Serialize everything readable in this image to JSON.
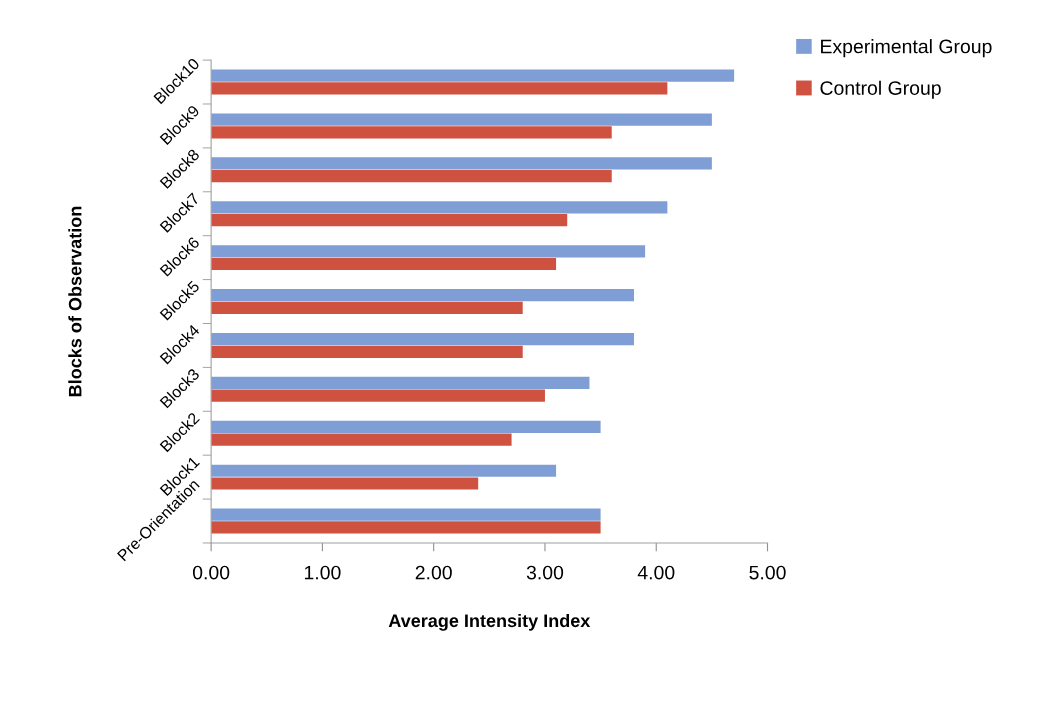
{
  "chart_data": {
    "type": "bar",
    "orientation": "horizontal",
    "xlabel": "Average Intensity Index",
    "ylabel": "Blocks of Observation",
    "categories": [
      "Block10",
      "Block9",
      "Block8",
      "Block7",
      "Block6",
      "Block5",
      "Block4",
      "Block3",
      "Block2",
      "Block1",
      "Pre-Orientation"
    ],
    "series": [
      {
        "name": "Experimental Group",
        "color": "#7f9ed6",
        "values": [
          4.7,
          4.5,
          4.5,
          4.1,
          3.9,
          3.8,
          3.8,
          3.4,
          3.5,
          3.1,
          3.5
        ]
      },
      {
        "name": "Control Group",
        "color": "#cf5140",
        "values": [
          4.1,
          3.6,
          3.6,
          3.2,
          3.1,
          2.8,
          2.8,
          3.0,
          2.7,
          2.4,
          3.5
        ]
      }
    ],
    "xlim": [
      0,
      5
    ],
    "xticks": [
      {
        "value": 0,
        "label": "0.00"
      },
      {
        "value": 1,
        "label": "1.00"
      },
      {
        "value": 2,
        "label": "2.00"
      },
      {
        "value": 3,
        "label": "3.00"
      },
      {
        "value": 4,
        "label": "4.00"
      },
      {
        "value": 5,
        "label": "5.00"
      }
    ],
    "legend": "top right"
  }
}
